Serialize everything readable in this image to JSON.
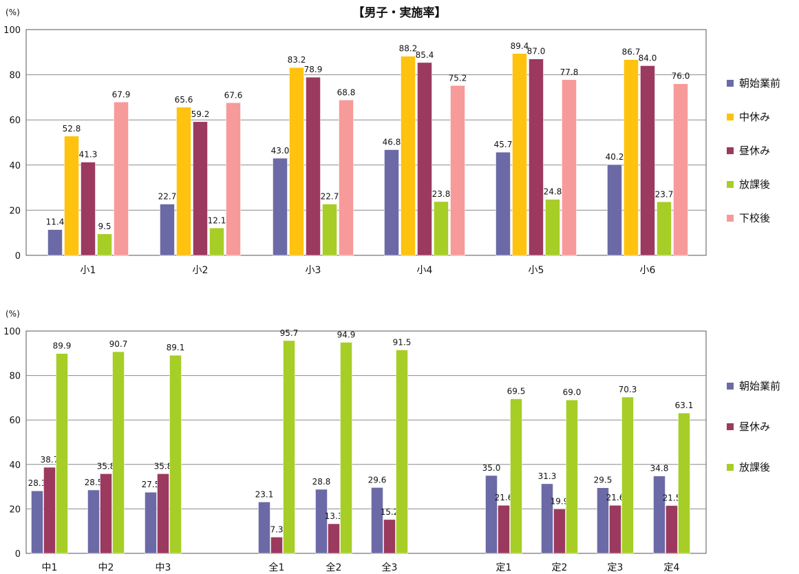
{
  "title": "【男子・実施率】",
  "colors": {
    "朝始業前": "#6b6aa6",
    "中休み": "#ffc20e",
    "昼休み": "#9b3a5e",
    "放課後": "#a6ce27",
    "下校後": "#f79a9a"
  },
  "chart_data": [
    {
      "type": "bar",
      "title": "【男子・実施率】",
      "ylabel": "(%)",
      "ylim": [
        0,
        100
      ],
      "yticks": [
        0,
        20,
        40,
        60,
        80,
        100
      ],
      "grid": true,
      "legend_position": "right",
      "categories": [
        "小1",
        "小2",
        "小3",
        "小4",
        "小5",
        "小6"
      ],
      "series": [
        {
          "name": "朝始業前",
          "values": [
            11.4,
            22.7,
            43.0,
            46.8,
            45.7,
            40.2
          ],
          "labels": [
            "11.4",
            "22.7",
            "43.0",
            "46.8",
            "45.7",
            "40.2"
          ]
        },
        {
          "name": "中休み",
          "values": [
            52.8,
            65.6,
            83.2,
            88.2,
            89.4,
            86.7
          ],
          "labels": [
            "52.8",
            "65.6",
            "83.2",
            "88.2",
            "89.4",
            "86.7"
          ]
        },
        {
          "name": "昼休み",
          "values": [
            41.3,
            59.2,
            78.9,
            85.4,
            87.0,
            84.0
          ],
          "labels": [
            "41.3",
            "59.2",
            "78.9",
            "85.4",
            "87.0",
            "84.0"
          ]
        },
        {
          "name": "放課後",
          "values": [
            9.5,
            12.1,
            22.7,
            23.8,
            24.8,
            23.7
          ],
          "labels": [
            "9.5",
            "12.1",
            "22.7",
            "23.8",
            "24.8",
            "23.7"
          ]
        },
        {
          "name": "下校後",
          "values": [
            67.9,
            67.6,
            68.8,
            75.2,
            77.8,
            76.0
          ],
          "labels": [
            "67.9",
            "67.6",
            "68.8",
            "75.2",
            "77.8",
            "76.0"
          ]
        }
      ]
    },
    {
      "type": "bar",
      "ylabel": "(%)",
      "ylim": [
        0,
        100
      ],
      "yticks": [
        0,
        20,
        40,
        60,
        80,
        100
      ],
      "grid": true,
      "legend_position": "right",
      "categories": [
        "中1",
        "中2",
        "中3",
        "",
        "全1",
        "全2",
        "全3",
        "",
        "定1",
        "定2",
        "定3",
        "定4"
      ],
      "series": [
        {
          "name": "朝始業前",
          "values": [
            28.1,
            28.5,
            27.5,
            null,
            23.1,
            28.8,
            29.6,
            null,
            35.0,
            31.3,
            29.5,
            34.8
          ],
          "labels": [
            "28.1",
            "28.5",
            "27.5",
            null,
            "23.1",
            "28.8",
            "29.6",
            null,
            "35.0",
            "31.3",
            "29.5",
            "34.8"
          ]
        },
        {
          "name": "昼休み",
          "values": [
            38.7,
            35.8,
            35.8,
            null,
            7.3,
            13.3,
            15.2,
            null,
            21.6,
            19.9,
            21.6,
            21.5
          ],
          "labels": [
            "38.7",
            "35.8",
            "35.8",
            null,
            "7.3",
            "13.3",
            "15.2",
            null,
            "21.6",
            "19.9",
            "21.6",
            "21.5"
          ]
        },
        {
          "name": "放課後",
          "values": [
            89.9,
            90.7,
            89.1,
            null,
            95.7,
            94.9,
            91.5,
            null,
            69.5,
            69.0,
            70.3,
            63.1
          ],
          "labels": [
            "89.9",
            "90.7",
            "89.1",
            null,
            "95.7",
            "94.9",
            "91.5",
            null,
            "69.5",
            "69.0",
            "70.3",
            "63.1"
          ]
        }
      ]
    }
  ]
}
